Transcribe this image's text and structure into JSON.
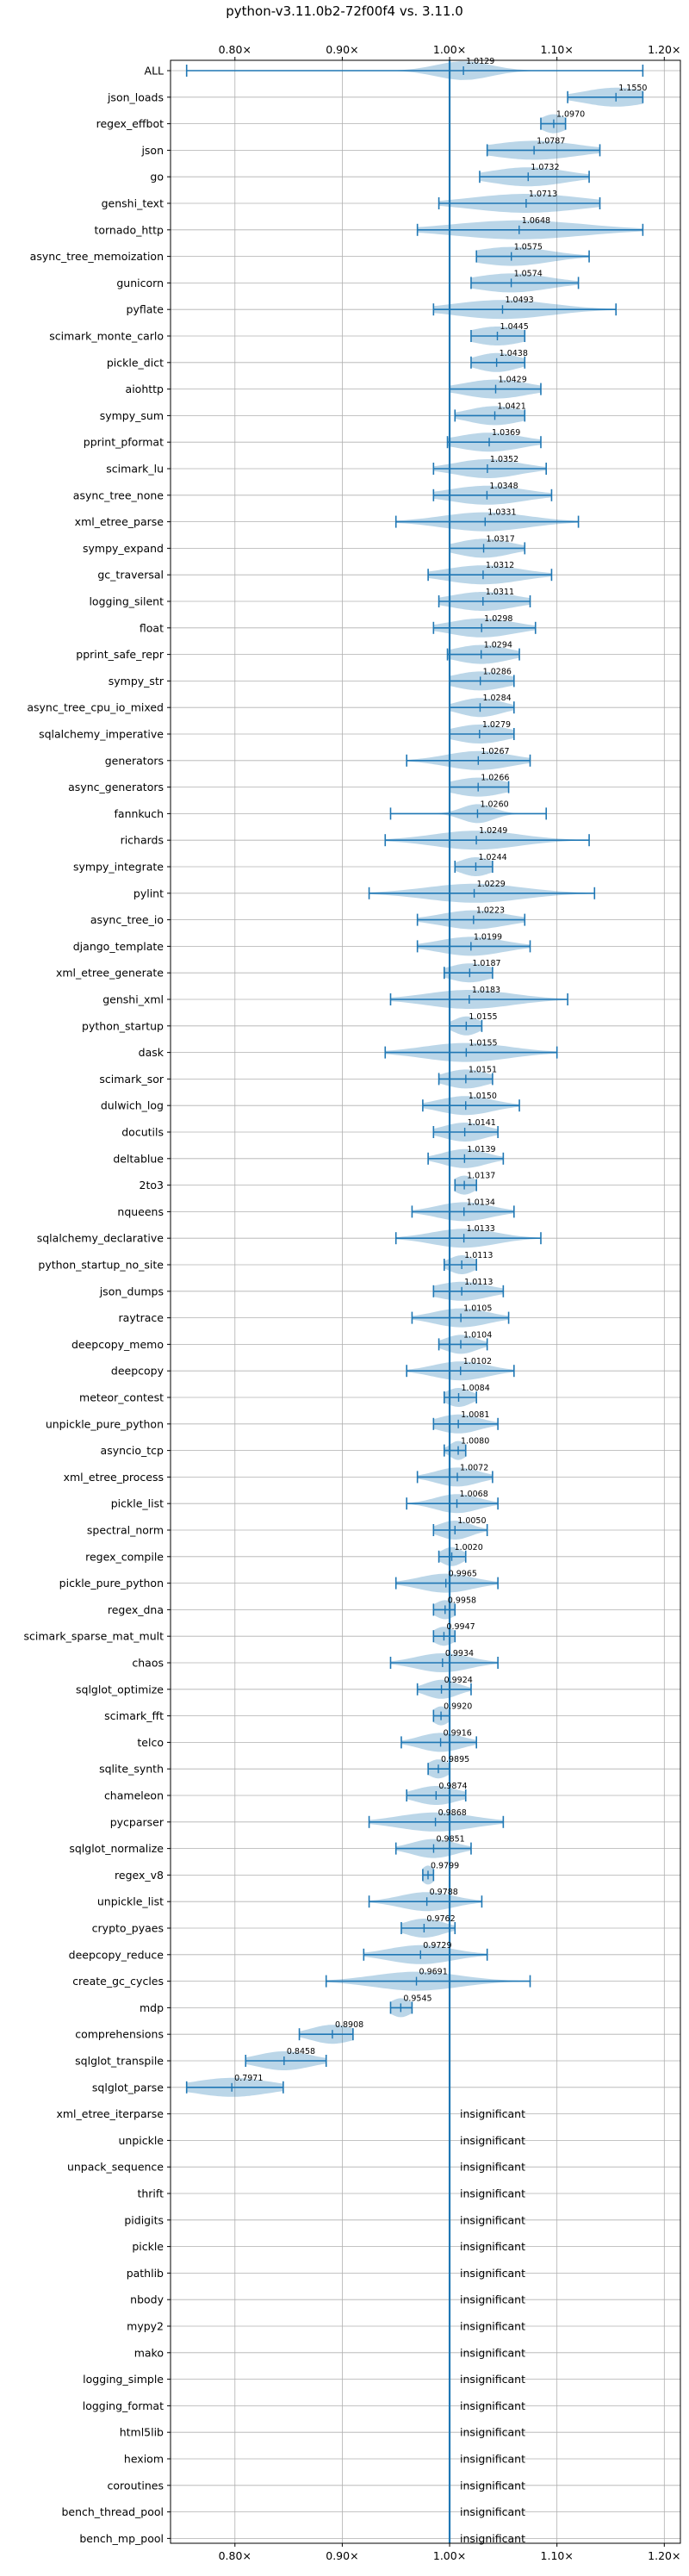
{
  "chart_data": {
    "type": "violin",
    "title": "python-v3.11.0b2-72f00f4 vs. 3.11.0",
    "xlabel": "",
    "ylabel": "",
    "xlim": [
      0.74,
      1.215
    ],
    "xticks": [
      0.8,
      0.9,
      1.0,
      1.1,
      1.2
    ],
    "xtick_labels": [
      "0.80×",
      "0.90×",
      "1.00×",
      "1.10×",
      "1.20×"
    ],
    "reference_line": 1.0,
    "grid": true,
    "color": "#1f77b4",
    "insignificant_label": "insignificant",
    "benchmarks": [
      {
        "name": "ALL",
        "value": 1.0129,
        "min": 0.755,
        "max": 1.18,
        "spread": 0.025
      },
      {
        "name": "json_loads",
        "value": 1.155,
        "min": 1.11,
        "max": 1.18,
        "spread": 0.03
      },
      {
        "name": "regex_effbot",
        "value": 1.097,
        "min": 1.085,
        "max": 1.108,
        "spread": 0.012
      },
      {
        "name": "json",
        "value": 1.0787,
        "min": 1.035,
        "max": 1.14,
        "spread": 0.04
      },
      {
        "name": "go",
        "value": 1.0732,
        "min": 1.028,
        "max": 1.13,
        "spread": 0.035
      },
      {
        "name": "genshi_text",
        "value": 1.0713,
        "min": 0.99,
        "max": 1.14,
        "spread": 0.05
      },
      {
        "name": "tornado_http",
        "value": 1.0648,
        "min": 0.97,
        "max": 1.18,
        "spread": 0.06
      },
      {
        "name": "async_tree_memoization",
        "value": 1.0575,
        "min": 1.025,
        "max": 1.13,
        "spread": 0.035
      },
      {
        "name": "gunicorn",
        "value": 1.0574,
        "min": 1.02,
        "max": 1.12,
        "spread": 0.035
      },
      {
        "name": "pyflate",
        "value": 1.0493,
        "min": 0.985,
        "max": 1.155,
        "spread": 0.045
      },
      {
        "name": "scimark_monte_carlo",
        "value": 1.0445,
        "min": 1.02,
        "max": 1.07,
        "spread": 0.025
      },
      {
        "name": "pickle_dict",
        "value": 1.0438,
        "min": 1.02,
        "max": 1.07,
        "spread": 0.02
      },
      {
        "name": "aiohttp",
        "value": 1.0429,
        "min": 1.0,
        "max": 1.085,
        "spread": 0.03
      },
      {
        "name": "sympy_sum",
        "value": 1.0421,
        "min": 1.005,
        "max": 1.07,
        "spread": 0.025
      },
      {
        "name": "pprint_pformat",
        "value": 1.0369,
        "min": 0.998,
        "max": 1.085,
        "spread": 0.03
      },
      {
        "name": "scimark_lu",
        "value": 1.0352,
        "min": 0.985,
        "max": 1.09,
        "spread": 0.03
      },
      {
        "name": "async_tree_none",
        "value": 1.0348,
        "min": 0.985,
        "max": 1.095,
        "spread": 0.035
      },
      {
        "name": "xml_etree_parse",
        "value": 1.0331,
        "min": 0.95,
        "max": 1.12,
        "spread": 0.04
      },
      {
        "name": "sympy_expand",
        "value": 1.0317,
        "min": 1.0,
        "max": 1.07,
        "spread": 0.025
      },
      {
        "name": "gc_traversal",
        "value": 1.0312,
        "min": 0.98,
        "max": 1.095,
        "spread": 0.035
      },
      {
        "name": "logging_silent",
        "value": 1.0311,
        "min": 0.99,
        "max": 1.075,
        "spread": 0.03
      },
      {
        "name": "float",
        "value": 1.0298,
        "min": 0.985,
        "max": 1.08,
        "spread": 0.03
      },
      {
        "name": "pprint_safe_repr",
        "value": 1.0294,
        "min": 0.998,
        "max": 1.065,
        "spread": 0.025
      },
      {
        "name": "sympy_str",
        "value": 1.0286,
        "min": 1.0,
        "max": 1.06,
        "spread": 0.025
      },
      {
        "name": "async_tree_cpu_io_mixed",
        "value": 1.0284,
        "min": 1.0,
        "max": 1.06,
        "spread": 0.02
      },
      {
        "name": "sqlalchemy_imperative",
        "value": 1.0279,
        "min": 1.0,
        "max": 1.06,
        "spread": 0.025
      },
      {
        "name": "generators",
        "value": 1.0267,
        "min": 0.96,
        "max": 1.075,
        "spread": 0.03
      },
      {
        "name": "async_generators",
        "value": 1.0266,
        "min": 1.0,
        "max": 1.055,
        "spread": 0.025
      },
      {
        "name": "fannkuch",
        "value": 1.026,
        "min": 0.945,
        "max": 1.09,
        "spread": 0.015
      },
      {
        "name": "richards",
        "value": 1.0249,
        "min": 0.94,
        "max": 1.13,
        "spread": 0.04
      },
      {
        "name": "sympy_integrate",
        "value": 1.0244,
        "min": 1.005,
        "max": 1.04,
        "spread": 0.015
      },
      {
        "name": "pylint",
        "value": 1.0229,
        "min": 0.925,
        "max": 1.135,
        "spread": 0.045
      },
      {
        "name": "async_tree_io",
        "value": 1.0223,
        "min": 0.97,
        "max": 1.07,
        "spread": 0.03
      },
      {
        "name": "django_template",
        "value": 1.0199,
        "min": 0.97,
        "max": 1.075,
        "spread": 0.03
      },
      {
        "name": "xml_etree_generate",
        "value": 1.0187,
        "min": 0.995,
        "max": 1.04,
        "spread": 0.02
      },
      {
        "name": "genshi_xml",
        "value": 1.0183,
        "min": 0.945,
        "max": 1.11,
        "spread": 0.04
      },
      {
        "name": "python_startup",
        "value": 1.0155,
        "min": 1.0,
        "max": 1.03,
        "spread": 0.012
      },
      {
        "name": "dask",
        "value": 1.0155,
        "min": 0.94,
        "max": 1.1,
        "spread": 0.04
      },
      {
        "name": "scimark_sor",
        "value": 1.0151,
        "min": 0.99,
        "max": 1.04,
        "spread": 0.02
      },
      {
        "name": "dulwich_log",
        "value": 1.015,
        "min": 0.975,
        "max": 1.065,
        "spread": 0.025
      },
      {
        "name": "docutils",
        "value": 1.0141,
        "min": 0.985,
        "max": 1.045,
        "spread": 0.02
      },
      {
        "name": "deltablue",
        "value": 1.0139,
        "min": 0.98,
        "max": 1.05,
        "spread": 0.02
      },
      {
        "name": "2to3",
        "value": 1.0137,
        "min": 1.005,
        "max": 1.025,
        "spread": 0.01
      },
      {
        "name": "nqueens",
        "value": 1.0134,
        "min": 0.965,
        "max": 1.06,
        "spread": 0.025
      },
      {
        "name": "sqlalchemy_declarative",
        "value": 1.0133,
        "min": 0.95,
        "max": 1.085,
        "spread": 0.03
      },
      {
        "name": "python_startup_no_site",
        "value": 1.0113,
        "min": 0.995,
        "max": 1.025,
        "spread": 0.012
      },
      {
        "name": "json_dumps",
        "value": 1.0113,
        "min": 0.985,
        "max": 1.05,
        "spread": 0.025
      },
      {
        "name": "raytrace",
        "value": 1.0105,
        "min": 0.965,
        "max": 1.055,
        "spread": 0.025
      },
      {
        "name": "deepcopy_memo",
        "value": 1.0104,
        "min": 0.99,
        "max": 1.035,
        "spread": 0.015
      },
      {
        "name": "deepcopy",
        "value": 1.0102,
        "min": 0.96,
        "max": 1.06,
        "spread": 0.025
      },
      {
        "name": "meteor_contest",
        "value": 1.0084,
        "min": 0.995,
        "max": 1.025,
        "spread": 0.012
      },
      {
        "name": "unpickle_pure_python",
        "value": 1.0081,
        "min": 0.985,
        "max": 1.045,
        "spread": 0.02
      },
      {
        "name": "asyncio_tcp",
        "value": 1.008,
        "min": 0.995,
        "max": 1.015,
        "spread": 0.008
      },
      {
        "name": "xml_etree_process",
        "value": 1.0072,
        "min": 0.97,
        "max": 1.04,
        "spread": 0.02
      },
      {
        "name": "pickle_list",
        "value": 1.0068,
        "min": 0.96,
        "max": 1.045,
        "spread": 0.02
      },
      {
        "name": "spectral_norm",
        "value": 1.005,
        "min": 0.985,
        "max": 1.035,
        "spread": 0.015
      },
      {
        "name": "regex_compile",
        "value": 1.002,
        "min": 0.99,
        "max": 1.015,
        "spread": 0.01
      },
      {
        "name": "pickle_pure_python",
        "value": 0.9965,
        "min": 0.95,
        "max": 1.045,
        "spread": 0.025
      },
      {
        "name": "regex_dna",
        "value": 0.9958,
        "min": 0.985,
        "max": 1.005,
        "spread": 0.01
      },
      {
        "name": "scimark_sparse_mat_mult",
        "value": 0.9947,
        "min": 0.985,
        "max": 1.005,
        "spread": 0.01
      },
      {
        "name": "chaos",
        "value": 0.9934,
        "min": 0.945,
        "max": 1.045,
        "spread": 0.025
      },
      {
        "name": "sqlglot_optimize",
        "value": 0.9924,
        "min": 0.97,
        "max": 1.02,
        "spread": 0.015
      },
      {
        "name": "scimark_fft",
        "value": 0.992,
        "min": 0.985,
        "max": 1.0,
        "spread": 0.008
      },
      {
        "name": "telco",
        "value": 0.9916,
        "min": 0.955,
        "max": 1.025,
        "spread": 0.02
      },
      {
        "name": "sqlite_synth",
        "value": 0.9895,
        "min": 0.98,
        "max": 1.0,
        "spread": 0.01
      },
      {
        "name": "chameleon",
        "value": 0.9874,
        "min": 0.96,
        "max": 1.015,
        "spread": 0.02
      },
      {
        "name": "pycparser",
        "value": 0.9868,
        "min": 0.925,
        "max": 1.05,
        "spread": 0.035
      },
      {
        "name": "sqlglot_normalize",
        "value": 0.9851,
        "min": 0.95,
        "max": 1.02,
        "spread": 0.02
      },
      {
        "name": "regex_v8",
        "value": 0.9799,
        "min": 0.975,
        "max": 0.985,
        "spread": 0.006
      },
      {
        "name": "unpickle_list",
        "value": 0.9788,
        "min": 0.925,
        "max": 1.03,
        "spread": 0.025
      },
      {
        "name": "crypto_pyaes",
        "value": 0.9762,
        "min": 0.955,
        "max": 1.005,
        "spread": 0.018
      },
      {
        "name": "deepcopy_reduce",
        "value": 0.9729,
        "min": 0.92,
        "max": 1.035,
        "spread": 0.03
      },
      {
        "name": "create_gc_cycles",
        "value": 0.9691,
        "min": 0.885,
        "max": 1.075,
        "spread": 0.04
      },
      {
        "name": "mdp",
        "value": 0.9545,
        "min": 0.945,
        "max": 0.965,
        "spread": 0.01
      },
      {
        "name": "comprehensions",
        "value": 0.8908,
        "min": 0.86,
        "max": 0.91,
        "spread": 0.02
      },
      {
        "name": "sqlglot_transpile",
        "value": 0.8458,
        "min": 0.81,
        "max": 0.885,
        "spread": 0.025
      },
      {
        "name": "sqlglot_parse",
        "value": 0.7971,
        "min": 0.755,
        "max": 0.845,
        "spread": 0.035
      }
    ],
    "insignificant": [
      "xml_etree_iterparse",
      "unpickle",
      "unpack_sequence",
      "thrift",
      "pidigits",
      "pickle",
      "pathlib",
      "nbody",
      "mypy2",
      "mako",
      "logging_simple",
      "logging_format",
      "html5lib",
      "hexiom",
      "coroutines",
      "bench_thread_pool",
      "bench_mp_pool"
    ]
  }
}
